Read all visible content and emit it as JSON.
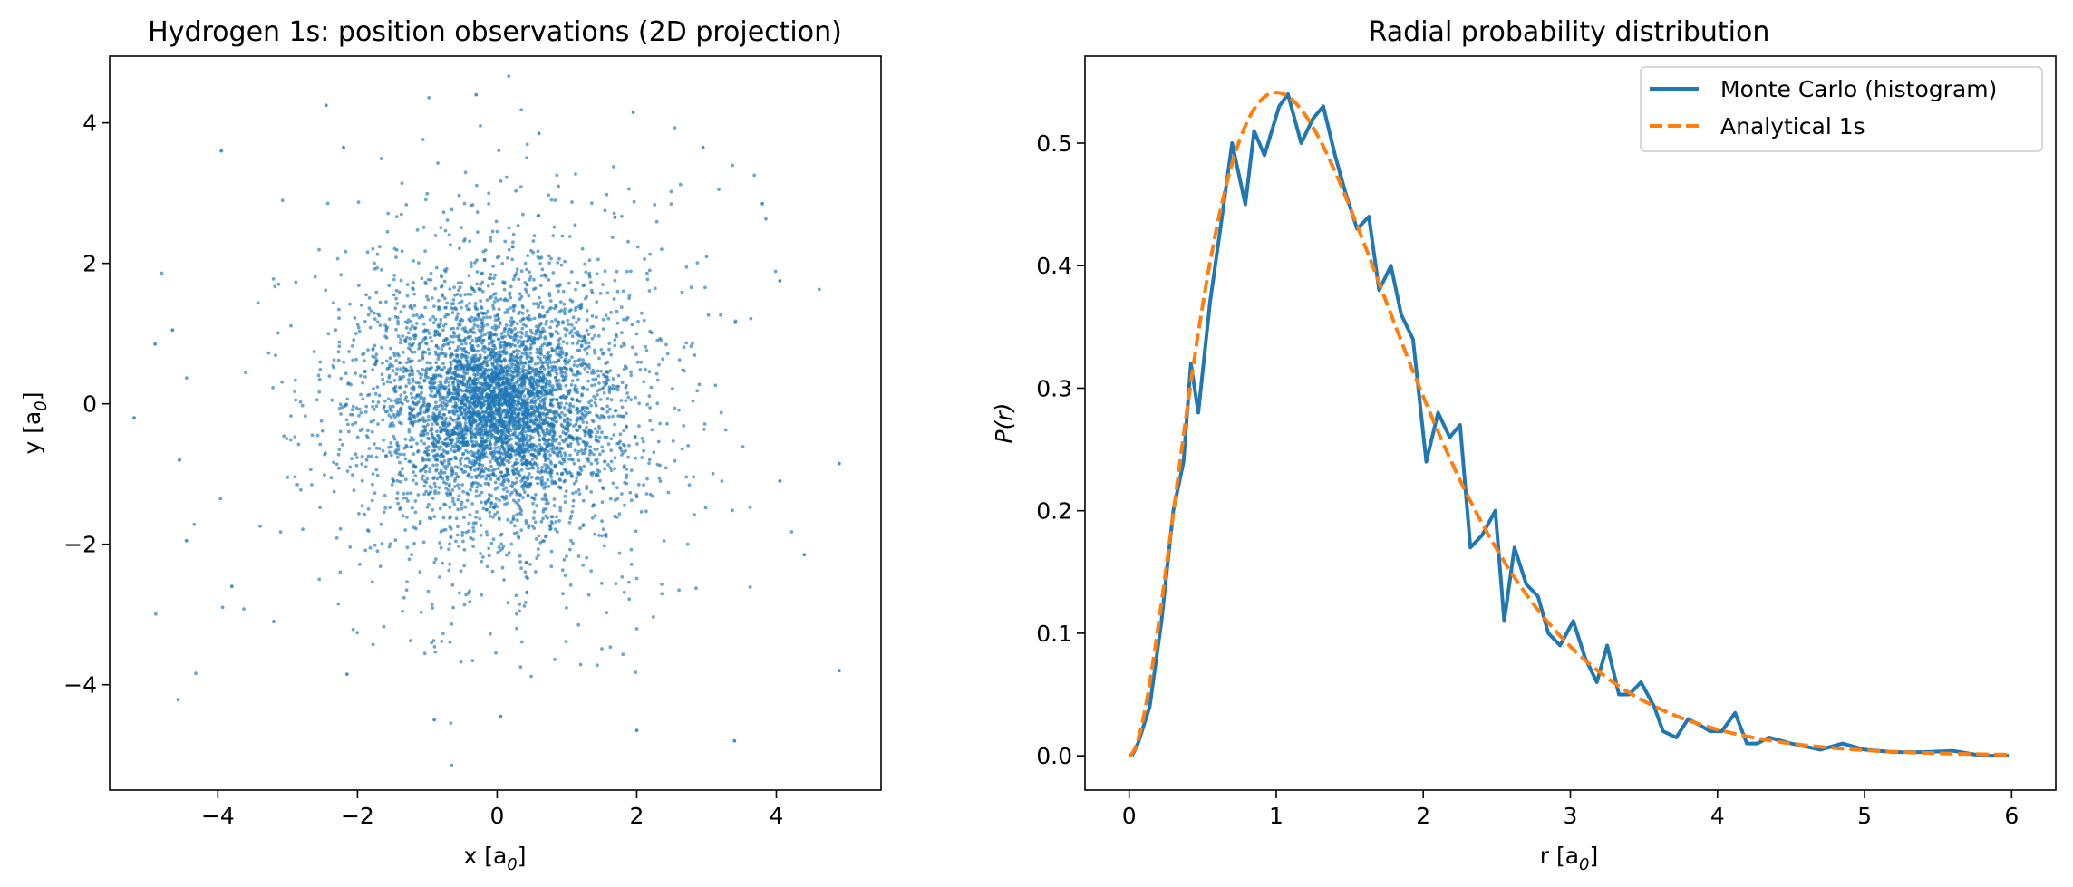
{
  "chart_data": [
    {
      "type": "scatter",
      "title": "Hydrogen 1s: position observations (2D projection)",
      "xlabel": "x [a0]",
      "ylabel": "y [a0]",
      "xlim": [
        -5.55,
        5.5
      ],
      "ylim": [
        -5.5,
        4.95
      ],
      "xticks": [
        "−4",
        "−2",
        "0",
        "2",
        "4"
      ],
      "yticks": [
        "−4",
        "−2",
        "0",
        "2",
        "4"
      ],
      "marker_color": "#1f77b4",
      "grid": false,
      "points": {
        "distribution": "3D hydrogen 1s positions projected to x-y; approximately 5000 points, most within |x|,|y| < 2.5",
        "count": 5000,
        "outliers": [
          [
            -5.2,
            -0.2
          ],
          [
            -4.9,
            0.85
          ],
          [
            -4.65,
            1.05
          ],
          [
            -4.55,
            -0.8
          ],
          [
            -4.45,
            -1.95
          ],
          [
            -3.95,
            3.6
          ],
          [
            -3.8,
            -2.6
          ],
          [
            -3.2,
            -3.1
          ],
          [
            -2.45,
            4.25
          ],
          [
            -2.2,
            3.65
          ],
          [
            -2.15,
            -3.85
          ],
          [
            -0.9,
            -4.5
          ],
          [
            -0.65,
            -5.15
          ],
          [
            -0.3,
            4.4
          ],
          [
            0.05,
            -4.45
          ],
          [
            0.6,
            3.85
          ],
          [
            1.95,
            4.15
          ],
          [
            2.0,
            -4.65
          ],
          [
            2.95,
            3.65
          ],
          [
            3.4,
            -4.8
          ],
          [
            3.8,
            2.85
          ],
          [
            4.05,
            1.75
          ],
          [
            4.05,
            -1.1
          ],
          [
            4.4,
            -2.15
          ],
          [
            4.9,
            -0.85
          ],
          [
            4.9,
            -3.8
          ]
        ]
      }
    },
    {
      "type": "line",
      "title": "Radial probability distribution",
      "xlabel": "r [a0]",
      "ylabel": "P(r)",
      "xlim": [
        -0.3,
        6.3
      ],
      "ylim": [
        -0.028,
        0.571
      ],
      "xticks": [
        "0",
        "1",
        "2",
        "3",
        "4",
        "5",
        "6"
      ],
      "yticks": [
        "0.0",
        "0.1",
        "0.2",
        "0.3",
        "0.4",
        "0.5"
      ],
      "legend_position": "top-right",
      "grid": false,
      "series": [
        {
          "name": "Monte Carlo (histogram)",
          "color": "#1f77b4",
          "style": "solid",
          "points": [
            [
              0.02,
              0.0
            ],
            [
              0.06,
              0.01
            ],
            [
              0.14,
              0.04
            ],
            [
              0.22,
              0.11
            ],
            [
              0.3,
              0.2
            ],
            [
              0.37,
              0.24
            ],
            [
              0.42,
              0.32
            ],
            [
              0.47,
              0.28
            ],
            [
              0.55,
              0.37
            ],
            [
              0.62,
              0.43
            ],
            [
              0.7,
              0.5
            ],
            [
              0.79,
              0.45
            ],
            [
              0.85,
              0.51
            ],
            [
              0.92,
              0.49
            ],
            [
              1.02,
              0.53
            ],
            [
              1.08,
              0.54
            ],
            [
              1.17,
              0.5
            ],
            [
              1.25,
              0.52
            ],
            [
              1.32,
              0.53
            ],
            [
              1.4,
              0.49
            ],
            [
              1.47,
              0.46
            ],
            [
              1.55,
              0.43
            ],
            [
              1.63,
              0.44
            ],
            [
              1.7,
              0.38
            ],
            [
              1.78,
              0.4
            ],
            [
              1.85,
              0.36
            ],
            [
              1.93,
              0.34
            ],
            [
              2.02,
              0.24
            ],
            [
              2.1,
              0.28
            ],
            [
              2.18,
              0.26
            ],
            [
              2.25,
              0.27
            ],
            [
              2.32,
              0.17
            ],
            [
              2.4,
              0.18
            ],
            [
              2.49,
              0.2
            ],
            [
              2.55,
              0.11
            ],
            [
              2.62,
              0.17
            ],
            [
              2.7,
              0.14
            ],
            [
              2.78,
              0.13
            ],
            [
              2.85,
              0.1
            ],
            [
              2.93,
              0.09
            ],
            [
              3.02,
              0.11
            ],
            [
              3.1,
              0.08
            ],
            [
              3.18,
              0.06
            ],
            [
              3.25,
              0.09
            ],
            [
              3.33,
              0.05
            ],
            [
              3.4,
              0.05
            ],
            [
              3.48,
              0.06
            ],
            [
              3.57,
              0.04
            ],
            [
              3.63,
              0.02
            ],
            [
              3.72,
              0.015
            ],
            [
              3.8,
              0.03
            ],
            [
              3.88,
              0.025
            ],
            [
              3.95,
              0.02
            ],
            [
              4.03,
              0.02
            ],
            [
              4.12,
              0.035
            ],
            [
              4.2,
              0.01
            ],
            [
              4.27,
              0.01
            ],
            [
              4.35,
              0.015
            ],
            [
              4.5,
              0.01
            ],
            [
              4.7,
              0.005
            ],
            [
              4.85,
              0.01
            ],
            [
              5.0,
              0.005
            ],
            [
              5.2,
              0.003
            ],
            [
              5.4,
              0.003
            ],
            [
              5.6,
              0.004
            ],
            [
              5.8,
              0.0
            ],
            [
              5.98,
              0.0
            ]
          ]
        },
        {
          "name": "Analytical 1s",
          "color": "#ff7f0e",
          "style": "dashed",
          "function": "4 r^2 exp(-2r)",
          "x_range": [
            0,
            6
          ]
        }
      ]
    }
  ]
}
